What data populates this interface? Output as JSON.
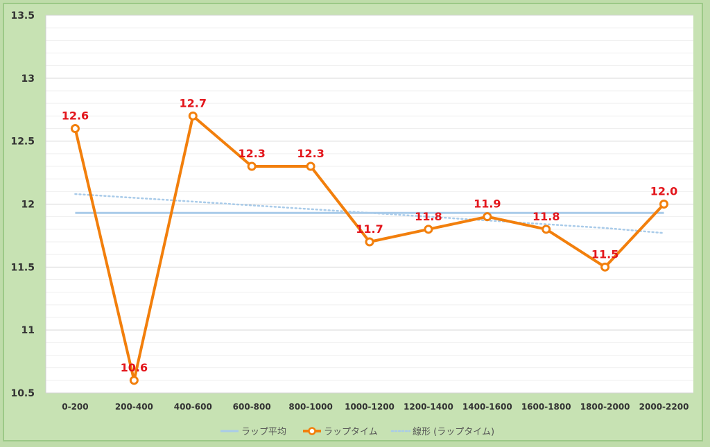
{
  "chart_data": {
    "type": "line",
    "categories": [
      "0-200",
      "200-400",
      "400-600",
      "600-800",
      "800-1000",
      "1000-1200",
      "1200-1400",
      "1400-1600",
      "1600-1800",
      "1800-2000",
      "2000-2200"
    ],
    "series": [
      {
        "name": "ラップタイム",
        "values": [
          12.6,
          10.6,
          12.7,
          12.3,
          12.3,
          11.7,
          11.8,
          11.9,
          11.8,
          11.5,
          12.0
        ],
        "color": "#f27f0c",
        "marker": "circle",
        "data_labels": [
          "12.6",
          "10.6",
          "12.7",
          "12.3",
          "12.3",
          "11.7",
          "11.8",
          "11.9",
          "11.8",
          "11.5",
          "12.0"
        ]
      },
      {
        "name": "ラップ平均",
        "values": [
          11.93,
          11.93,
          11.93,
          11.93,
          11.93,
          11.93,
          11.93,
          11.93,
          11.93,
          11.93,
          11.93
        ],
        "color": "#a9cbe9",
        "style": "solid"
      },
      {
        "name": "線形 (ラップタイム)",
        "values": [
          12.08,
          12.05,
          12.02,
          11.99,
          11.96,
          11.93,
          11.9,
          11.87,
          11.84,
          11.81,
          11.77
        ],
        "color": "#a9cbe9",
        "style": "dotted"
      }
    ],
    "y_ticks": [
      "10.5",
      "11",
      "11.5",
      "12",
      "12.5",
      "13",
      "13.5"
    ],
    "ylim": [
      10.5,
      13.5
    ],
    "grid": true,
    "legend_position": "bottom",
    "label_color": "#e3151b",
    "background_color": "#c7e2b3",
    "plot_background": "#ffffff"
  }
}
